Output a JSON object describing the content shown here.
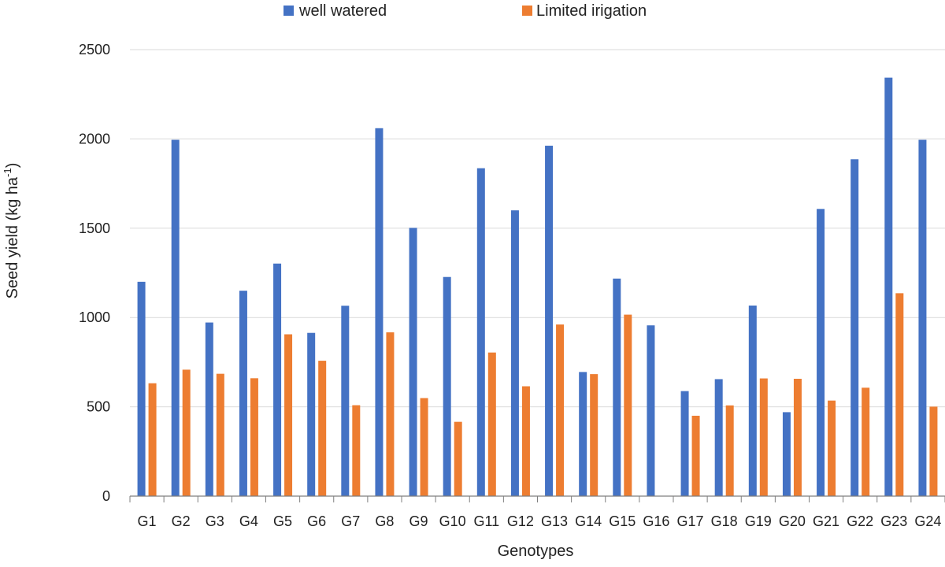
{
  "chart_data": {
    "type": "bar",
    "xlabel": "Genotypes",
    "ylabel": "Seed yield (kg ha",
    "ylabel_sup": "-1",
    "ylabel_close": ")",
    "ylim": [
      0,
      2500
    ],
    "yticks": [
      0,
      500,
      1000,
      1500,
      2000,
      2500
    ],
    "grid": true,
    "legend_position": "top-center",
    "categories": [
      "G1",
      "G2",
      "G3",
      "G4",
      "G5",
      "G6",
      "G7",
      "G8",
      "G9",
      "G10",
      "G11",
      "G12",
      "G13",
      "G14",
      "G15",
      "G16",
      "G17",
      "G18",
      "G19",
      "G20",
      "G21",
      "G22",
      "G23",
      "G24"
    ],
    "series": [
      {
        "name": "well watered",
        "color": "#4472C4",
        "values": [
          1200,
          1995,
          972,
          1150,
          1302,
          914,
          1066,
          2060,
          1502,
          1227,
          1836,
          1600,
          1962,
          695,
          1218,
          956,
          588,
          655,
          1067,
          470,
          1608,
          1886,
          2343,
          1995
        ]
      },
      {
        "name": "Limited irigation",
        "color": "#ED7D31",
        "values": [
          632,
          708,
          685,
          660,
          906,
          758,
          509,
          917,
          549,
          416,
          804,
          615,
          961,
          683,
          1016,
          0,
          450,
          508,
          659,
          657,
          535,
          607,
          1136,
          501
        ]
      }
    ]
  }
}
